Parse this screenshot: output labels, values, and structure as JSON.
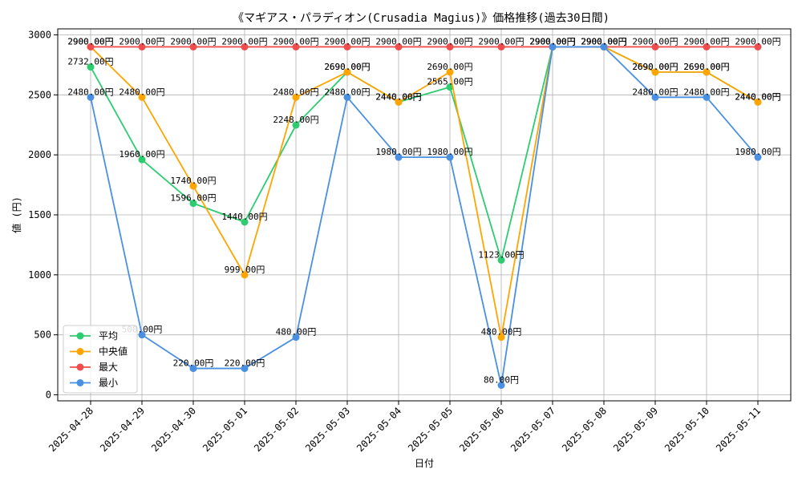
{
  "chart_data": {
    "type": "line",
    "title": "《マギアス・パラディオン(Crusadia Magius)》価格推移(過去30日間)",
    "xlabel": "日付",
    "ylabel": "値 (円)",
    "ylim": [
      -50,
      3050
    ],
    "y_ticks": [
      0,
      500,
      1000,
      1500,
      2000,
      2500,
      3000
    ],
    "grid": true,
    "legend_position": "lower-left",
    "categories": [
      "2025-04-28",
      "2025-04-29",
      "2025-04-30",
      "2025-05-01",
      "2025-05-02",
      "2025-05-03",
      "2025-05-04",
      "2025-05-05",
      "2025-05-06",
      "2025-05-07",
      "2025-05-08",
      "2025-05-09",
      "2025-05-10",
      "2025-05-11"
    ],
    "series": [
      {
        "name": "平均",
        "color": "#2ecc71",
        "values": [
          2732,
          1960,
          1596,
          1440,
          2248,
          2690,
          2440,
          2565,
          1123,
          2900,
          2900,
          2690,
          2690,
          2440
        ],
        "labels": [
          "2732.00円",
          "1960.00円",
          "1596.00円",
          "1440.00円",
          "2248.00円",
          "2690.00円",
          "2440.00円",
          "2565.00円",
          "1123.00円",
          "2900.00円",
          "2900.00円",
          "2690.00円",
          "2690.00円",
          "2440.00円"
        ]
      },
      {
        "name": "中央値",
        "color": "#ffa500",
        "values": [
          2900,
          2480,
          1740,
          999,
          2480,
          2690,
          2440,
          2690,
          480,
          2900,
          2900,
          2690,
          2690,
          2440
        ],
        "labels": [
          "2900.00円",
          "2480.00円",
          "1740.00円",
          "999.00円",
          "2480.00円",
          "2690.00円",
          "2440.00円",
          "2690.00円",
          "480.00円",
          "2900.00円",
          "2900.00円",
          "2690.00円",
          "2690.00円",
          "2440.00円"
        ]
      },
      {
        "name": "最大",
        "color": "#f04e4e",
        "values": [
          2900,
          2900,
          2900,
          2900,
          2900,
          2900,
          2900,
          2900,
          2900,
          2900,
          2900,
          2900,
          2900,
          2900
        ],
        "labels": [
          "2900.00円",
          "2900.00円",
          "2900.00円",
          "2900.00円",
          "2900.00円",
          "2900.00円",
          "2900.00円",
          "2900.00円",
          "2900.00円",
          "2900.00円",
          "2900.00円",
          "2900.00円",
          "2900.00円",
          "2900.00円"
        ]
      },
      {
        "name": "最小",
        "color": "#4a90e2",
        "values": [
          2480,
          500,
          220,
          220,
          480,
          2480,
          1980,
          1980,
          80,
          2900,
          2900,
          2480,
          2480,
          1980
        ],
        "labels": [
          "2480.00円",
          "500.00円",
          "220.00円",
          "220.00円",
          "480.00円",
          "2480.00円",
          "1980.00円",
          "1980.00円",
          "80.00円",
          "2900.00円",
          "2900.00円",
          "2480.00円",
          "2480.00円",
          "1980.00円"
        ]
      }
    ]
  }
}
